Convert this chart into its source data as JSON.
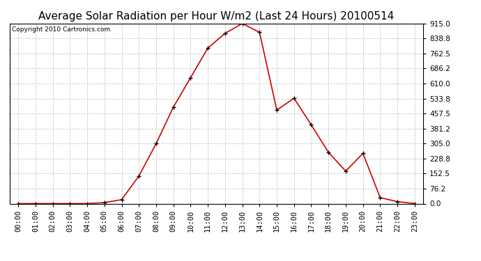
{
  "title": "Average Solar Radiation per Hour W/m2 (Last 24 Hours) 20100514",
  "copyright_text": "Copyright 2010 Cartronics.com",
  "hours": [
    "00:00",
    "01:00",
    "02:00",
    "03:00",
    "04:00",
    "05:00",
    "06:00",
    "07:00",
    "08:00",
    "09:00",
    "10:00",
    "11:00",
    "12:00",
    "13:00",
    "14:00",
    "15:00",
    "16:00",
    "17:00",
    "18:00",
    "19:00",
    "20:00",
    "21:00",
    "22:00",
    "23:00"
  ],
  "values": [
    0,
    0,
    0,
    0,
    0,
    5,
    20,
    140,
    305,
    490,
    640,
    790,
    865,
    915,
    870,
    475,
    535,
    400,
    260,
    165,
    255,
    30,
    10,
    0
  ],
  "line_color": "#cc0000",
  "marker": "+",
  "marker_color": "#000000",
  "background_color": "#ffffff",
  "grid_color": "#c8c8c8",
  "ylim": [
    0,
    915
  ],
  "yticks": [
    0.0,
    76.2,
    152.5,
    228.8,
    305.0,
    381.2,
    457.5,
    533.8,
    610.0,
    686.2,
    762.5,
    838.8,
    915.0
  ],
  "title_fontsize": 11,
  "copyright_fontsize": 6.5,
  "tick_fontsize": 7.5,
  "fig_width": 6.9,
  "fig_height": 3.75,
  "dpi": 100
}
